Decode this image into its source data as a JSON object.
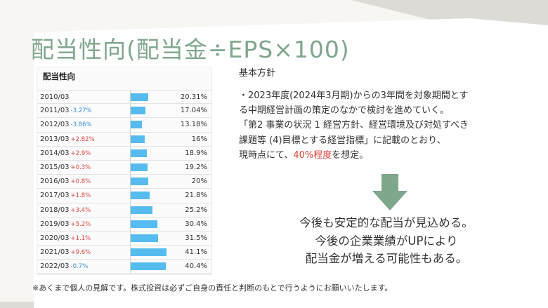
{
  "title": "配当性向(配当金÷EPS×100)",
  "table": {
    "heading": "配当性向",
    "rows": [
      {
        "year": "2010/03",
        "change": "",
        "dir": "",
        "payout": 20.31,
        "pct": "20.31%"
      },
      {
        "year": "2011/03",
        "change": "-3.27%",
        "dir": "down",
        "payout": 17.04,
        "pct": "17.04%"
      },
      {
        "year": "2012/03",
        "change": "-3.86%",
        "dir": "down",
        "payout": 13.18,
        "pct": "13.18%"
      },
      {
        "year": "2013/03",
        "change": "+2.82%",
        "dir": "up",
        "payout": 16,
        "pct": "16%"
      },
      {
        "year": "2014/03",
        "change": "+2.9%",
        "dir": "up",
        "payout": 18.9,
        "pct": "18.9%"
      },
      {
        "year": "2015/03",
        "change": "+0.3%",
        "dir": "up",
        "payout": 19.2,
        "pct": "19.2%"
      },
      {
        "year": "2016/03",
        "change": "+0.8%",
        "dir": "up",
        "payout": 20,
        "pct": "20%"
      },
      {
        "year": "2017/03",
        "change": "+1.8%",
        "dir": "up",
        "payout": 21.8,
        "pct": "21.8%"
      },
      {
        "year": "2018/03",
        "change": "+3.4%",
        "dir": "up",
        "payout": 25.2,
        "pct": "25.2%"
      },
      {
        "year": "2019/03",
        "change": "+5.2%",
        "dir": "up",
        "payout": 30.4,
        "pct": "30.4%"
      },
      {
        "year": "2020/03",
        "change": "+1.1%",
        "dir": "up",
        "payout": 31.5,
        "pct": "31.5%"
      },
      {
        "year": "2021/03",
        "change": "+9.6%",
        "dir": "up",
        "payout": 41.1,
        "pct": "41.1%"
      },
      {
        "year": "2022/03",
        "change": "-0.7%",
        "dir": "down",
        "payout": 40.4,
        "pct": "40.4%"
      }
    ]
  },
  "policy": {
    "title": "基本方針",
    "line1": "・2023年度(2024年3月期)からの3年間を対象期間とす",
    "line2": "る中期経営計画の策定のなかで検討を進めていく。",
    "line3": "「第2 事業の状況 1 経営方針、経営環境及び対処すべき",
    "line4": "課題等 (4)目標とする経営指標」に記載のとおり、",
    "line5_pre": "現時点にて、",
    "line5_red": "40%程度",
    "line5_post": "を想定。"
  },
  "outlook": {
    "line1": "今後も安定的な配当が見込める。",
    "line2": "今後の企業業績がUPにより",
    "line3": "配当金が増える可能性もある。"
  },
  "footnote": "※あくまで個人の見解です。株式投資は必ずご自身の責任と判断のもとで行うようにお願いいたします。",
  "colors": {
    "title": "#7fa78b",
    "bar": "#56bcef",
    "arrow": "#7fa78b",
    "highlight": "#e0433a"
  }
}
